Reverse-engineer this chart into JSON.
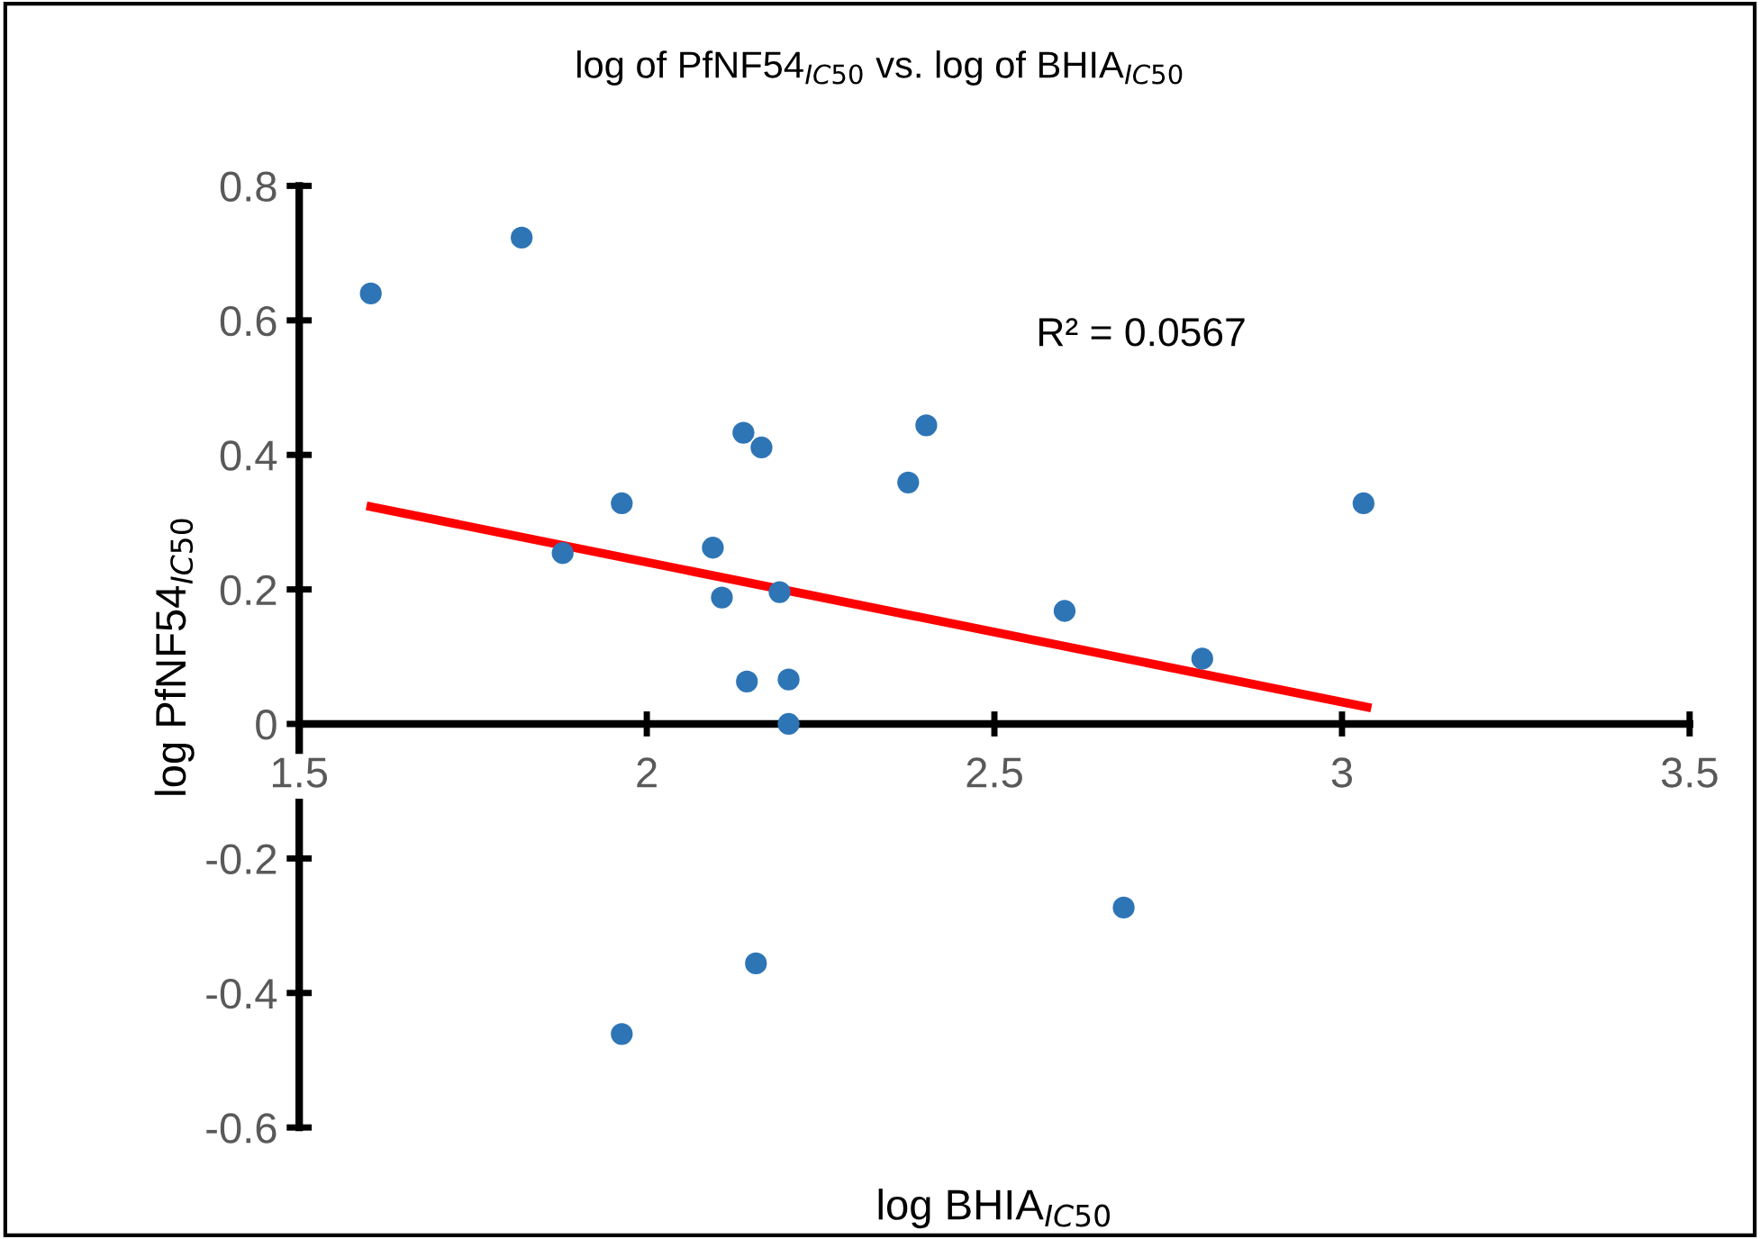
{
  "chart_data": {
    "type": "scatter",
    "title": "log of PfNF54$_{IC50}$ vs. log of BHIA$_{IC50}$",
    "xlabel": "log BHIA$_{IC50}$",
    "ylabel": "log PfNF54$_{IC50}$",
    "xlim": [
      1.5,
      3.5
    ],
    "xticks": [
      1.5,
      2,
      2.5,
      3,
      3.5
    ],
    "ylim": [
      -0.6,
      0.8
    ],
    "yticks": [
      -0.6,
      -0.4,
      -0.2,
      0,
      0.2,
      0.4,
      0.6,
      0.8
    ],
    "grid": false,
    "legend": false,
    "marker": "circle",
    "series": [
      {
        "color": "#2e75b6",
        "x": [
          1.603,
          1.82,
          1.879,
          1.964,
          2.095,
          2.108,
          2.139,
          2.165,
          2.191,
          2.144,
          2.204,
          2.204,
          2.376,
          2.402,
          2.601,
          2.799,
          3.031,
          2.686,
          2.157,
          1.964
        ],
        "values": [
          0.64,
          0.723,
          0.254,
          0.328,
          0.262,
          0.188,
          0.433,
          0.411,
          0.196,
          0.063,
          0.066,
          0.0,
          0.359,
          0.444,
          0.168,
          0.097,
          0.328,
          -0.273,
          -0.356,
          -0.461
        ]
      },
      {
        "type": "line",
        "marker": "none",
        "color": "#ff0000",
        "x": [
          1.603,
          3.036
        ],
        "values": [
          0.323,
          0.025
        ]
      }
    ],
    "annotations": [
      "R² = 0.0567"
    ]
  }
}
